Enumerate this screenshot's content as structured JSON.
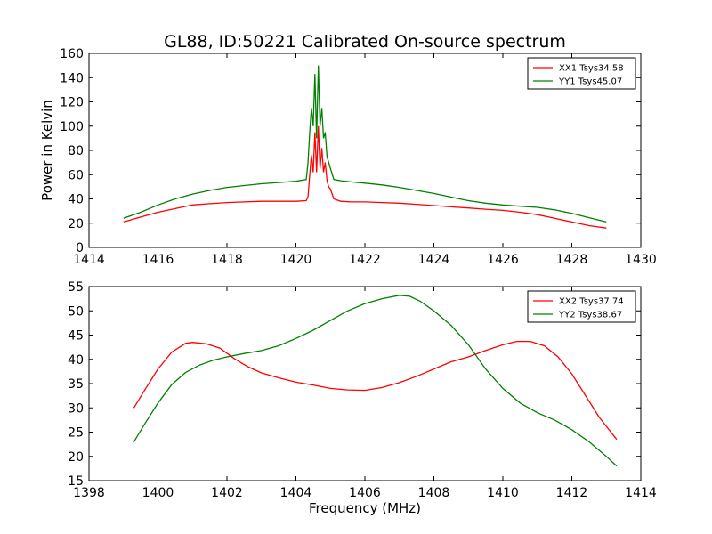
{
  "title": "GL88, ID:50221 Calibrated On-source spectrum",
  "chart_data": [
    {
      "type": "line",
      "ylabel": "Power in Kelvin",
      "xlabel": "",
      "xlim": [
        1414,
        1430
      ],
      "ylim": [
        0,
        160
      ],
      "xticks": [
        "1414",
        "1416",
        "1418",
        "1420",
        "1422",
        "1424",
        "1426",
        "1428",
        "1430"
      ],
      "yticks": [
        "0",
        "20",
        "40",
        "60",
        "80",
        "100",
        "120",
        "140",
        "160"
      ],
      "legend_position": "top-right",
      "colors": {
        "XX1": "#ff0000",
        "YY1": "#008000"
      },
      "series": [
        {
          "name": "XX1 Tsys34.58",
          "color": "#ff0000",
          "x": [
            1415.0,
            1415.5,
            1416.0,
            1416.5,
            1417.0,
            1417.5,
            1418.0,
            1418.5,
            1419.0,
            1419.5,
            1420.0,
            1420.3,
            1420.35,
            1420.4,
            1420.45,
            1420.5,
            1420.55,
            1420.6,
            1420.65,
            1420.7,
            1420.75,
            1420.8,
            1420.85,
            1420.9,
            1420.95,
            1421.0,
            1421.1,
            1421.3,
            1421.6,
            1422.0,
            1422.5,
            1423.0,
            1423.5,
            1424.0,
            1424.5,
            1425.0,
            1425.5,
            1426.0,
            1426.5,
            1427.0,
            1427.5,
            1428.0,
            1428.5,
            1429.0
          ],
          "values": [
            21,
            25,
            29,
            32,
            35,
            36,
            37,
            37.5,
            38,
            38,
            38,
            38.5,
            42,
            60,
            76,
            62,
            95,
            62,
            100,
            65,
            82,
            62,
            70,
            55,
            50,
            48,
            40,
            38,
            37.5,
            37.5,
            37,
            36.5,
            35.5,
            34.5,
            33.5,
            32.5,
            31.5,
            30.5,
            29,
            27,
            24,
            21,
            18,
            16
          ]
        },
        {
          "name": "YY1 Tsys45.07",
          "color": "#008000",
          "x": [
            1415.0,
            1415.5,
            1416.0,
            1416.5,
            1417.0,
            1417.5,
            1418.0,
            1418.5,
            1419.0,
            1419.5,
            1420.0,
            1420.3,
            1420.35,
            1420.4,
            1420.45,
            1420.5,
            1420.55,
            1420.6,
            1420.65,
            1420.7,
            1420.75,
            1420.8,
            1420.85,
            1420.9,
            1420.95,
            1421.0,
            1421.1,
            1421.3,
            1421.6,
            1422.0,
            1422.5,
            1423.0,
            1423.5,
            1424.0,
            1424.5,
            1425.0,
            1425.5,
            1426.0,
            1426.5,
            1427.0,
            1427.5,
            1428.0,
            1428.5,
            1429.0
          ],
          "values": [
            24,
            29,
            35,
            40,
            44,
            47,
            49.5,
            51,
            52.5,
            53.5,
            54.5,
            56,
            70,
            95,
            115,
            100,
            143,
            90,
            150,
            100,
            115,
            90,
            95,
            75,
            70,
            65,
            56,
            55,
            54,
            53,
            51.5,
            49.5,
            47,
            44.5,
            41.5,
            38.5,
            36.5,
            35,
            34,
            33,
            31,
            28,
            24.5,
            21
          ]
        }
      ]
    },
    {
      "type": "line",
      "ylabel": "",
      "xlabel": "Frequency (MHz)",
      "xlim": [
        1398,
        1414
      ],
      "ylim": [
        15,
        55
      ],
      "xticks": [
        "1398",
        "1400",
        "1402",
        "1404",
        "1406",
        "1408",
        "1410",
        "1412",
        "1414"
      ],
      "yticks": [
        "15",
        "20",
        "25",
        "30",
        "35",
        "40",
        "45",
        "50",
        "55"
      ],
      "legend_position": "top-right",
      "colors": {
        "XX2": "#ff0000",
        "YY2": "#008000"
      },
      "series": [
        {
          "name": "XX2 Tsys37.74",
          "color": "#ff0000",
          "x": [
            1399.3,
            1399.6,
            1400.0,
            1400.4,
            1400.8,
            1401.0,
            1401.4,
            1401.8,
            1402.2,
            1402.6,
            1403.0,
            1403.5,
            1404.0,
            1404.5,
            1405.0,
            1405.5,
            1406.0,
            1406.5,
            1407.0,
            1407.5,
            1408.0,
            1408.5,
            1409.0,
            1409.5,
            1410.0,
            1410.4,
            1410.8,
            1411.2,
            1411.6,
            1412.0,
            1412.4,
            1412.8,
            1413.3
          ],
          "values": [
            30,
            33.5,
            38,
            41.5,
            43.3,
            43.5,
            43.2,
            42.3,
            40.2,
            38.5,
            37.2,
            36.2,
            35.3,
            34.7,
            34,
            33.7,
            33.6,
            34.2,
            35.2,
            36.5,
            38,
            39.5,
            40.5,
            41.8,
            43,
            43.7,
            43.7,
            42.8,
            40.5,
            37,
            32.5,
            28,
            23.5
          ]
        },
        {
          "name": "YY2 Tsys38.67",
          "color": "#008000",
          "x": [
            1399.3,
            1399.6,
            1400.0,
            1400.4,
            1400.8,
            1401.2,
            1401.6,
            1402.0,
            1402.5,
            1403.0,
            1403.5,
            1404.0,
            1404.5,
            1405.0,
            1405.5,
            1406.0,
            1406.5,
            1407.0,
            1407.3,
            1407.6,
            1408.0,
            1408.5,
            1409.0,
            1409.5,
            1410.0,
            1410.5,
            1411.0,
            1411.5,
            1412.0,
            1412.5,
            1413.0,
            1413.3
          ],
          "values": [
            23,
            26.5,
            31,
            34.8,
            37.3,
            38.8,
            39.8,
            40.5,
            41.2,
            41.8,
            42.8,
            44.3,
            46,
            48,
            50,
            51.5,
            52.5,
            53.2,
            53,
            52,
            50,
            47,
            43,
            38,
            34,
            31,
            29,
            27.5,
            25.5,
            23,
            20,
            18
          ]
        }
      ]
    }
  ]
}
